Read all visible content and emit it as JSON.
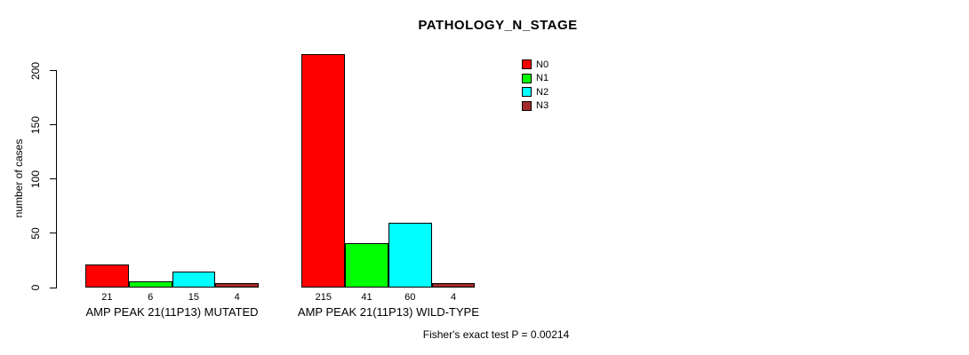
{
  "title": "PATHOLOGY_N_STAGE",
  "footer": "Fisher's exact test P = 0.00214",
  "chart_data": {
    "type": "bar",
    "title": "PATHOLOGY_N_STAGE",
    "subtitle": "",
    "xlabel": "",
    "ylabel": "number of cases",
    "categories": [
      "AMP PEAK 21(11P13) MUTATED",
      "AMP PEAK 21(11P13) WILD-TYPE"
    ],
    "series": [
      {
        "name": "N0",
        "color": "#FF0000",
        "values": [
          21,
          215
        ]
      },
      {
        "name": "N1",
        "color": "#00FF00",
        "values": [
          6,
          41
        ]
      },
      {
        "name": "N2",
        "color": "#00FFFF",
        "values": [
          15,
          60
        ]
      },
      {
        "name": "N3",
        "color": "#A52A2A",
        "values": [
          4,
          4
        ]
      }
    ],
    "bar_value_labels": [
      [
        21,
        6,
        15,
        4
      ],
      [
        215,
        41,
        60,
        4
      ]
    ],
    "yticks": [
      0,
      50,
      100,
      150,
      200
    ],
    "ylim": [
      0,
      220
    ],
    "grid": false,
    "legend_position": "top-right",
    "legend_entries": [
      "N0",
      "N1",
      "N2",
      "N3"
    ],
    "annotation": "Fisher's exact test P = 0.00214",
    "axis_color": "#000000",
    "bar_border_color": "#000000"
  }
}
